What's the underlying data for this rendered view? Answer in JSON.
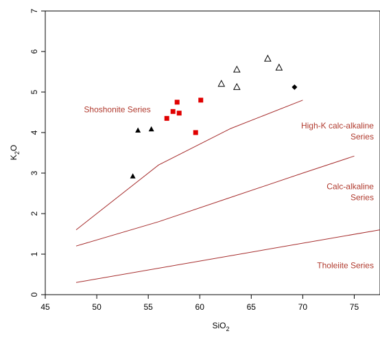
{
  "chart_data": {
    "type": "scatter",
    "xlabel_main": "SiO",
    "xlabel_sub": "2",
    "ylabel_main": "K",
    "ylabel_sub": "2",
    "ylabel_tail": "O",
    "xlim": [
      45,
      77.5
    ],
    "ylim": [
      0,
      7
    ],
    "x_ticks": [
      "45",
      "50",
      "55",
      "60",
      "65",
      "70",
      "75"
    ],
    "y_ticks": [
      "0",
      "1",
      "2",
      "3",
      "4",
      "5",
      "6",
      "7"
    ],
    "grid": false,
    "boundary_color": "#a52a2a",
    "label_color": "#b03a2e",
    "boundaries": [
      {
        "name": "Shoshonite / High-K",
        "points": [
          [
            48,
            1.6
          ],
          [
            56,
            3.2
          ],
          [
            63,
            4.1
          ],
          [
            70,
            4.8
          ]
        ]
      },
      {
        "name": "High-K / Calc-alkaline",
        "points": [
          [
            48,
            1.2
          ],
          [
            56,
            1.8
          ],
          [
            63,
            2.4
          ],
          [
            70,
            3.0
          ],
          [
            75,
            3.42
          ]
        ]
      },
      {
        "name": "Calc-alkaline / Tholeiite",
        "points": [
          [
            48,
            0.3
          ],
          [
            77.5,
            1.6
          ]
        ]
      }
    ],
    "field_labels": {
      "shoshonite": {
        "lines": [
          "Shoshonite Series"
        ],
        "x": 52,
        "y": 4.5
      },
      "highk": {
        "lines": [
          "High-K calc-alkaline",
          "Series"
        ],
        "x": 76.9,
        "y": 4.1
      },
      "calc": {
        "lines": [
          "Calc-alkaline",
          "Series"
        ],
        "x": 76.9,
        "y": 2.6
      },
      "thol": {
        "lines": [
          "Tholeiite Series"
        ],
        "x": 76.9,
        "y": 0.65
      }
    },
    "series": [
      {
        "marker": "filled-triangle",
        "color": "#000000",
        "points": [
          [
            53.5,
            2.92
          ],
          [
            54.0,
            4.05
          ],
          [
            55.3,
            4.08
          ]
        ]
      },
      {
        "marker": "filled-square",
        "color": "#e00000",
        "points": [
          [
            56.8,
            4.35
          ],
          [
            57.4,
            4.52
          ],
          [
            57.8,
            4.75
          ],
          [
            58.0,
            4.48
          ],
          [
            59.6,
            4.0
          ],
          [
            60.1,
            4.8
          ]
        ]
      },
      {
        "marker": "open-triangle",
        "color": "#000000",
        "points": [
          [
            62.1,
            5.2
          ],
          [
            63.6,
            5.12
          ],
          [
            63.6,
            5.55
          ],
          [
            66.6,
            5.82
          ],
          [
            67.7,
            5.6
          ]
        ]
      },
      {
        "marker": "filled-diamond",
        "color": "#000000",
        "points": [
          [
            69.2,
            5.12
          ]
        ]
      }
    ]
  }
}
